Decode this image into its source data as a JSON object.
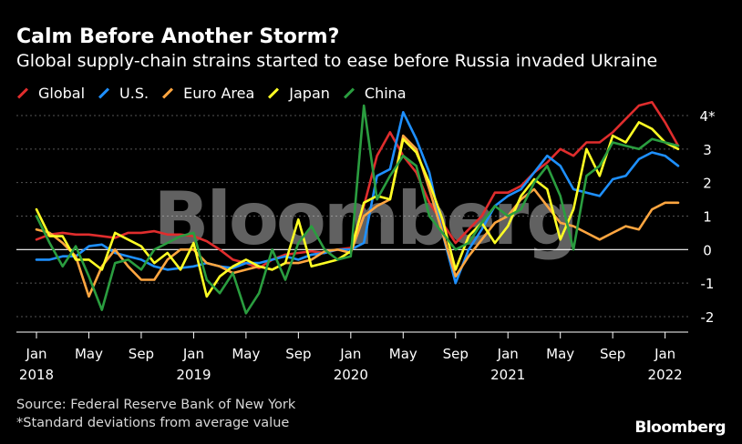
{
  "header": {
    "title": "Calm Before Another Storm?",
    "subtitle": "Global supply-chain strains started to ease before Russia invaded Ukraine"
  },
  "watermark": "Bloomberg",
  "footer": {
    "source": "Source: Federal Reserve Bank of New York",
    "footnote": "*Standard deviations from average value",
    "brand": "Bloomberg"
  },
  "chart_data": {
    "type": "line",
    "title": "Calm Before Another Storm?",
    "ylabel": "Standard deviations from average value",
    "ylim": [
      -2.5,
      4.5
    ],
    "y_ticks": [
      -2,
      -1,
      0,
      1,
      2,
      3,
      4
    ],
    "y_tick_labels": [
      "-2",
      "-1",
      "0",
      "1",
      "2",
      "3",
      "4*"
    ],
    "x_start": "2018-01",
    "x_ticks": [
      {
        "index": 0,
        "month": "Jan",
        "year": "2018"
      },
      {
        "index": 4,
        "month": "May",
        "year": ""
      },
      {
        "index": 8,
        "month": "Sep",
        "year": ""
      },
      {
        "index": 12,
        "month": "Jan",
        "year": "2019"
      },
      {
        "index": 16,
        "month": "May",
        "year": ""
      },
      {
        "index": 20,
        "month": "Sep",
        "year": ""
      },
      {
        "index": 24,
        "month": "Jan",
        "year": "2020"
      },
      {
        "index": 28,
        "month": "May",
        "year": ""
      },
      {
        "index": 32,
        "month": "Sep",
        "year": ""
      },
      {
        "index": 36,
        "month": "Jan",
        "year": "2021"
      },
      {
        "index": 40,
        "month": "May",
        "year": ""
      },
      {
        "index": 44,
        "month": "Sep",
        "year": ""
      },
      {
        "index": 48,
        "month": "Jan",
        "year": "2022"
      }
    ],
    "legend": "top-left",
    "series": [
      {
        "name": "Global",
        "color": "#e02d2d",
        "values": [
          0.3,
          0.45,
          0.5,
          0.45,
          0.45,
          0.4,
          0.35,
          0.5,
          0.5,
          0.55,
          0.45,
          0.45,
          0.4,
          0.25,
          0.0,
          -0.3,
          -0.4,
          -0.55,
          -0.3,
          -0.15,
          -0.1,
          -0.05,
          -0.1,
          0.0,
          0.05,
          1.3,
          2.8,
          3.5,
          2.8,
          2.3,
          1.4,
          0.8,
          0.2,
          0.6,
          1.0,
          1.7,
          1.7,
          1.9,
          2.3,
          2.6,
          3.0,
          2.8,
          3.2,
          3.2,
          3.5,
          3.9,
          4.3,
          4.4,
          3.8,
          3.1
        ]
      },
      {
        "name": "U.S.",
        "color": "#1e90ff",
        "values": [
          -0.3,
          -0.3,
          -0.2,
          -0.2,
          0.1,
          0.15,
          -0.1,
          -0.2,
          -0.3,
          -0.5,
          -0.6,
          -0.55,
          -0.5,
          -0.4,
          -0.5,
          -0.55,
          -0.4,
          -0.4,
          -0.3,
          -0.2,
          -0.3,
          -0.15,
          -0.1,
          0.0,
          0.0,
          0.2,
          2.2,
          2.4,
          4.1,
          3.3,
          2.3,
          0.5,
          -1.0,
          0.0,
          0.6,
          1.3,
          1.6,
          1.8,
          2.3,
          2.8,
          2.5,
          1.8,
          1.7,
          1.6,
          2.1,
          2.2,
          2.7,
          2.9,
          2.8,
          2.5
        ]
      },
      {
        "name": "Euro Area",
        "color": "#ffa640",
        "values": [
          0.6,
          0.5,
          0.2,
          -0.2,
          -1.4,
          -0.5,
          0.0,
          -0.5,
          -0.9,
          -0.9,
          -0.3,
          0.0,
          0.0,
          -0.4,
          -0.5,
          -0.7,
          -0.6,
          -0.5,
          -0.6,
          -0.4,
          -0.4,
          -0.3,
          -0.05,
          0.0,
          -0.1,
          1.0,
          1.3,
          1.5,
          3.4,
          3.0,
          1.8,
          0.5,
          -0.8,
          -0.2,
          0.3,
          0.8,
          1.0,
          1.5,
          1.8,
          1.3,
          0.8,
          0.7,
          0.5,
          0.3,
          0.5,
          0.7,
          0.6,
          1.2,
          1.4,
          1.4
        ]
      },
      {
        "name": "Japan",
        "color": "#ffff24",
        "values": [
          1.2,
          0.4,
          0.4,
          -0.3,
          -0.3,
          -0.6,
          0.5,
          0.3,
          0.1,
          -0.4,
          -0.1,
          -0.6,
          0.2,
          -1.4,
          -0.8,
          -0.5,
          -0.3,
          -0.5,
          -0.6,
          -0.4,
          0.9,
          -0.5,
          -0.4,
          -0.3,
          -0.05,
          1.4,
          1.6,
          1.5,
          3.3,
          2.9,
          2.0,
          0.9,
          -0.6,
          0.4,
          0.8,
          0.2,
          0.7,
          1.6,
          2.1,
          1.8,
          0.3,
          1.2,
          3.0,
          2.2,
          3.4,
          3.2,
          3.8,
          3.6,
          3.2,
          3.0
        ]
      },
      {
        "name": "China",
        "color": "#2a9d3f",
        "values": [
          1.0,
          0.2,
          -0.5,
          0.1,
          -0.8,
          -1.8,
          -0.4,
          -0.3,
          -0.6,
          0.0,
          0.2,
          0.4,
          0.5,
          -0.9,
          -1.3,
          -0.7,
          -1.9,
          -1.3,
          0.0,
          -0.9,
          0.2,
          0.7,
          0.0,
          -0.3,
          -0.2,
          4.3,
          1.5,
          2.2,
          2.8,
          2.5,
          1.0,
          0.5,
          0.0,
          0.2,
          0.8,
          1.3,
          1.0,
          1.2,
          2.0,
          2.5,
          1.6,
          0.0,
          2.2,
          2.5,
          3.2,
          3.1,
          3.0,
          3.3,
          3.2,
          3.1
        ]
      }
    ]
  }
}
